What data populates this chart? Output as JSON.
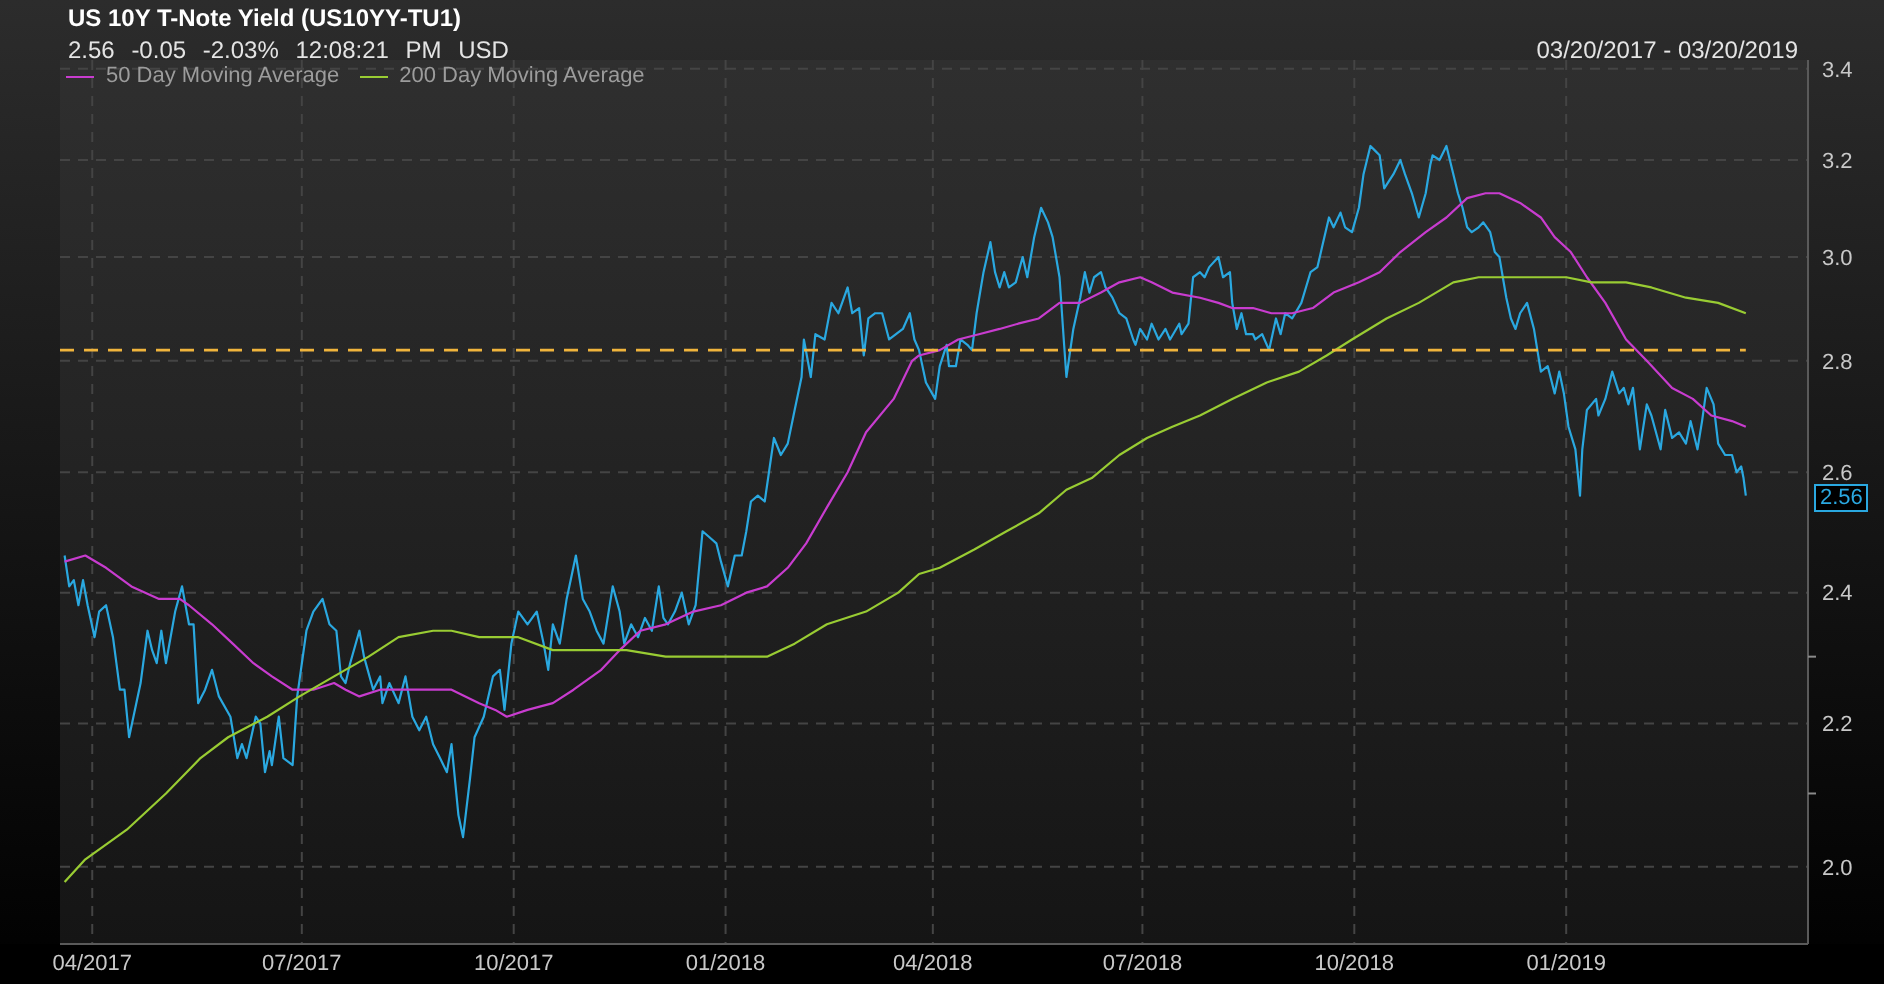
{
  "chart_data": {
    "type": "line",
    "title": "US 10Y T-Note Yield (US10YY-TU1)",
    "subtitle": "2.56 -0.05 -2.03% 12:08:21 PM USD",
    "annotations": [
      "03/20/2017 - 03/20/2019",
      "2.56"
    ],
    "series": [
      {
        "color": "#2aa8e0",
        "x": [
          "2017-03-20",
          "2017-03-22",
          "2017-03-24",
          "2017-03-26",
          "2017-03-28",
          "2017-03-30",
          "2017-04-02",
          "2017-04-04",
          "2017-04-07",
          "2017-04-10",
          "2017-04-13",
          "2017-04-15",
          "2017-04-17",
          "2017-04-22",
          "2017-04-25",
          "2017-04-27",
          "2017-04-29",
          "2017-05-01",
          "2017-05-03",
          "2017-05-07",
          "2017-05-10",
          "2017-05-13",
          "2017-05-15",
          "2017-05-17",
          "2017-05-20",
          "2017-05-23",
          "2017-05-26",
          "2017-05-31",
          "2017-06-03",
          "2017-06-05",
          "2017-06-07",
          "2017-06-11",
          "2017-06-13",
          "2017-06-15",
          "2017-06-17",
          "2017-06-18",
          "2017-06-21",
          "2017-06-23",
          "2017-06-27",
          "2017-06-29",
          "2017-07-03",
          "2017-07-06",
          "2017-07-10",
          "2017-07-13",
          "2017-07-16",
          "2017-07-18",
          "2017-07-20",
          "2017-07-22",
          "2017-07-26",
          "2017-07-28",
          "2017-08-01",
          "2017-08-04",
          "2017-08-05",
          "2017-08-08",
          "2017-08-12",
          "2017-08-15",
          "2017-08-18",
          "2017-08-21",
          "2017-08-24",
          "2017-08-27",
          "2017-08-30",
          "2017-09-02",
          "2017-09-04",
          "2017-09-07",
          "2017-09-09",
          "2017-09-12",
          "2017-09-14",
          "2017-09-18",
          "2017-09-22",
          "2017-09-25",
          "2017-09-27",
          "2017-09-30",
          "2017-10-03",
          "2017-10-07",
          "2017-10-11",
          "2017-10-14",
          "2017-10-16",
          "2017-10-18",
          "2017-10-21",
          "2017-10-24",
          "2017-10-28",
          "2017-10-31",
          "2017-11-03",
          "2017-11-06",
          "2017-11-09",
          "2017-11-13",
          "2017-11-16",
          "2017-11-18",
          "2017-11-21",
          "2017-11-24",
          "2017-11-27",
          "2017-11-30",
          "2017-12-03",
          "2017-12-05",
          "2017-12-07",
          "2017-12-10",
          "2017-12-13",
          "2017-12-16",
          "2017-12-19",
          "2017-12-22",
          "2017-12-25",
          "2017-12-28",
          "2017-12-30",
          "2018-01-02",
          "2018-01-05",
          "2018-01-08",
          "2018-01-10",
          "2018-01-12",
          "2018-01-15",
          "2018-01-18",
          "2018-01-22",
          "2018-01-25",
          "2018-01-28",
          "2018-01-31",
          "2018-02-03",
          "2018-02-04",
          "2018-02-07",
          "2018-02-09",
          "2018-02-13",
          "2018-02-16",
          "2018-02-19",
          "2018-02-23",
          "2018-02-25",
          "2018-02-28",
          "2018-03-02",
          "2018-03-04",
          "2018-03-07",
          "2018-03-10",
          "2018-03-13",
          "2018-03-16",
          "2018-03-19",
          "2018-03-22",
          "2018-03-24",
          "2018-03-26",
          "2018-03-29",
          "2018-04-02",
          "2018-04-04",
          "2018-04-07",
          "2018-04-08",
          "2018-04-11",
          "2018-04-13",
          "2018-04-16",
          "2018-04-18",
          "2018-04-20",
          "2018-04-23",
          "2018-04-26",
          "2018-04-28",
          "2018-04-30",
          "2018-05-02",
          "2018-05-04",
          "2018-05-07",
          "2018-05-10",
          "2018-05-12",
          "2018-05-15",
          "2018-05-18",
          "2018-05-21",
          "2018-05-23",
          "2018-05-26",
          "2018-05-28",
          "2018-05-29",
          "2018-06-01",
          "2018-06-04",
          "2018-06-06",
          "2018-06-08",
          "2018-06-10",
          "2018-06-13",
          "2018-06-15",
          "2018-06-18",
          "2018-06-21",
          "2018-06-24",
          "2018-06-27",
          "2018-06-28",
          "2018-06-30",
          "2018-07-03",
          "2018-07-05",
          "2018-07-08",
          "2018-07-11",
          "2018-07-13",
          "2018-07-17",
          "2018-07-18",
          "2018-07-21",
          "2018-07-23",
          "2018-07-26",
          "2018-07-28",
          "2018-07-30",
          "2018-08-03",
          "2018-08-05",
          "2018-08-08",
          "2018-08-09",
          "2018-08-11",
          "2018-08-13",
          "2018-08-15",
          "2018-08-18",
          "2018-08-19",
          "2018-08-22",
          "2018-08-25",
          "2018-08-28",
          "2018-08-30",
          "2018-09-01",
          "2018-09-04",
          "2018-09-08",
          "2018-09-10",
          "2018-09-12",
          "2018-09-15",
          "2018-09-17",
          "2018-09-20",
          "2018-09-22",
          "2018-09-25",
          "2018-09-27",
          "2018-09-30",
          "2018-10-03",
          "2018-10-05",
          "2018-10-08",
          "2018-10-10",
          "2018-10-12",
          "2018-10-14",
          "2018-10-18",
          "2018-10-21",
          "2018-10-23",
          "2018-10-26",
          "2018-10-29",
          "2018-11-01",
          "2018-11-03",
          "2018-11-04",
          "2018-11-07",
          "2018-11-10",
          "2018-11-13",
          "2018-11-15",
          "2018-11-17",
          "2018-11-19",
          "2018-11-21",
          "2018-11-24",
          "2018-11-26",
          "2018-11-29",
          "2018-12-01",
          "2018-12-03",
          "2018-12-06",
          "2018-12-08",
          "2018-12-10",
          "2018-12-12",
          "2018-12-15",
          "2018-12-18",
          "2018-12-21",
          "2018-12-24",
          "2018-12-27",
          "2018-12-29",
          "2018-12-31",
          "2019-01-02",
          "2019-01-05",
          "2019-01-07",
          "2019-01-08",
          "2019-01-10",
          "2019-01-14",
          "2019-01-15",
          "2019-01-18",
          "2019-01-21",
          "2019-01-24",
          "2019-01-26",
          "2019-01-28",
          "2019-01-30",
          "2019-02-02",
          "2019-02-05",
          "2019-02-07",
          "2019-02-11",
          "2019-02-13",
          "2019-02-16",
          "2019-02-19",
          "2019-02-22",
          "2019-02-24",
          "2019-02-27",
          "2019-03-01",
          "2019-03-03",
          "2019-03-06",
          "2019-03-08",
          "2019-03-11",
          "2019-03-14",
          "2019-03-16",
          "2019-03-18",
          "2019-03-19",
          "2019-03-20"
        ],
        "values": [
          2.46,
          2.41,
          2.42,
          2.38,
          2.42,
          2.38,
          2.33,
          2.37,
          2.38,
          2.33,
          2.25,
          2.25,
          2.18,
          2.26,
          2.34,
          2.31,
          2.29,
          2.34,
          2.29,
          2.37,
          2.41,
          2.35,
          2.35,
          2.23,
          2.25,
          2.28,
          2.24,
          2.21,
          2.15,
          2.17,
          2.15,
          2.21,
          2.2,
          2.13,
          2.16,
          2.14,
          2.21,
          2.15,
          2.14,
          2.24,
          2.34,
          2.37,
          2.39,
          2.35,
          2.34,
          2.27,
          2.26,
          2.29,
          2.34,
          2.3,
          2.25,
          2.27,
          2.23,
          2.26,
          2.23,
          2.27,
          2.21,
          2.19,
          2.21,
          2.17,
          2.15,
          2.13,
          2.17,
          2.07,
          2.04,
          2.12,
          2.18,
          2.21,
          2.27,
          2.28,
          2.22,
          2.32,
          2.37,
          2.35,
          2.37,
          2.32,
          2.28,
          2.35,
          2.32,
          2.39,
          2.46,
          2.39,
          2.37,
          2.34,
          2.32,
          2.41,
          2.37,
          2.32,
          2.35,
          2.33,
          2.36,
          2.34,
          2.41,
          2.36,
          2.35,
          2.37,
          2.4,
          2.35,
          2.38,
          2.5,
          2.49,
          2.48,
          2.45,
          2.41,
          2.46,
          2.46,
          2.5,
          2.55,
          2.56,
          2.55,
          2.66,
          2.63,
          2.65,
          2.71,
          2.77,
          2.84,
          2.77,
          2.85,
          2.84,
          2.91,
          2.89,
          2.94,
          2.89,
          2.9,
          2.81,
          2.88,
          2.89,
          2.89,
          2.84,
          2.85,
          2.86,
          2.89,
          2.84,
          2.82,
          2.76,
          2.73,
          2.79,
          2.83,
          2.79,
          2.79,
          2.84,
          2.83,
          2.82,
          2.89,
          2.97,
          3.03,
          2.97,
          2.94,
          2.97,
          2.94,
          2.95,
          3.0,
          2.96,
          3.04,
          3.1,
          3.07,
          3.04,
          2.96,
          2.83,
          2.77,
          2.86,
          2.92,
          2.97,
          2.93,
          2.96,
          2.97,
          2.94,
          2.92,
          2.89,
          2.88,
          2.84,
          2.83,
          2.86,
          2.84,
          2.87,
          2.84,
          2.86,
          2.84,
          2.87,
          2.85,
          2.87,
          2.96,
          2.97,
          2.96,
          2.98,
          3.0,
          2.96,
          2.97,
          2.91,
          2.86,
          2.89,
          2.85,
          2.85,
          2.84,
          2.85,
          2.82,
          2.88,
          2.85,
          2.89,
          2.88,
          2.91,
          2.94,
          2.97,
          2.98,
          3.02,
          3.08,
          3.06,
          3.09,
          3.06,
          3.05,
          3.1,
          3.17,
          3.23,
          3.22,
          3.21,
          3.14,
          3.17,
          3.2,
          3.17,
          3.13,
          3.08,
          3.13,
          3.19,
          3.21,
          3.2,
          3.23,
          3.17,
          3.13,
          3.1,
          3.06,
          3.05,
          3.06,
          3.07,
          3.05,
          3.01,
          3.0,
          2.92,
          2.88,
          2.86,
          2.89,
          2.91,
          2.86,
          2.78,
          2.79,
          2.74,
          2.78,
          2.74,
          2.68,
          2.64,
          2.56,
          2.64,
          2.71,
          2.73,
          2.7,
          2.73,
          2.78,
          2.74,
          2.75,
          2.72,
          2.75,
          2.64,
          2.72,
          2.7,
          2.64,
          2.71,
          2.66,
          2.67,
          2.65,
          2.69,
          2.64,
          2.69,
          2.75,
          2.72,
          2.65,
          2.63,
          2.63,
          2.6,
          2.61,
          2.59,
          2.56
        ]
      },
      {
        "name": "50 Day Moving Average",
        "color": "#c83ccf",
        "x": [
          "2017-03-20",
          "2017-03-29",
          "2017-04-07",
          "2017-04-18",
          "2017-04-30",
          "2017-05-09",
          "2017-05-13",
          "2017-05-23",
          "2017-06-01",
          "2017-06-10",
          "2017-06-18",
          "2017-06-27",
          "2017-07-06",
          "2017-07-15",
          "2017-07-20",
          "2017-07-26",
          "2017-08-04",
          "2017-08-12",
          "2017-08-24",
          "2017-09-04",
          "2017-09-10",
          "2017-09-16",
          "2017-09-23",
          "2017-09-28",
          "2017-10-07",
          "2017-10-18",
          "2017-10-27",
          "2017-11-08",
          "2017-11-16",
          "2017-11-25",
          "2017-12-06",
          "2017-12-18",
          "2017-12-30",
          "2018-01-10",
          "2018-01-19",
          "2018-01-28",
          "2018-02-05",
          "2018-02-14",
          "2018-02-23",
          "2018-03-03",
          "2018-03-15",
          "2018-03-23",
          "2018-03-26",
          "2018-04-04",
          "2018-04-12",
          "2018-04-21",
          "2018-04-30",
          "2018-05-08",
          "2018-05-17",
          "2018-05-26",
          "2018-06-04",
          "2018-06-13",
          "2018-06-21",
          "2018-06-30",
          "2018-07-05",
          "2018-07-14",
          "2018-07-26",
          "2018-08-03",
          "2018-08-09",
          "2018-08-18",
          "2018-08-26",
          "2018-09-04",
          "2018-09-13",
          "2018-09-22",
          "2018-10-03",
          "2018-10-12",
          "2018-10-21",
          "2018-11-01",
          "2018-11-10",
          "2018-11-19",
          "2018-11-27",
          "2018-12-03",
          "2018-12-12",
          "2018-12-21",
          "2018-12-27",
          "2019-01-03",
          "2019-01-10",
          "2019-01-18",
          "2019-01-27",
          "2019-02-05",
          "2019-02-16",
          "2019-02-25",
          "2019-03-05",
          "2019-03-14",
          "2019-03-20"
        ],
        "values": [
          2.45,
          2.46,
          2.44,
          2.41,
          2.39,
          2.39,
          2.38,
          2.35,
          2.32,
          2.29,
          2.27,
          2.25,
          2.25,
          2.26,
          2.25,
          2.24,
          2.25,
          2.25,
          2.25,
          2.25,
          2.24,
          2.23,
          2.22,
          2.21,
          2.22,
          2.23,
          2.25,
          2.28,
          2.31,
          2.34,
          2.35,
          2.37,
          2.38,
          2.4,
          2.41,
          2.44,
          2.48,
          2.54,
          2.6,
          2.67,
          2.73,
          2.8,
          2.81,
          2.82,
          2.84,
          2.85,
          2.86,
          2.87,
          2.88,
          2.91,
          2.91,
          2.93,
          2.95,
          2.96,
          2.95,
          2.93,
          2.92,
          2.91,
          2.9,
          2.9,
          2.89,
          2.89,
          2.9,
          2.93,
          2.95,
          2.97,
          3.01,
          3.05,
          3.08,
          3.12,
          3.13,
          3.13,
          3.11,
          3.08,
          3.04,
          3.01,
          2.96,
          2.91,
          2.84,
          2.8,
          2.75,
          2.73,
          2.7,
          2.69,
          2.68
        ]
      },
      {
        "name": "200 Day Moving Average",
        "color": "#99cc33",
        "x": [
          "2017-03-20",
          "2017-03-29",
          "2017-04-16",
          "2017-05-03",
          "2017-05-18",
          "2017-05-30",
          "2017-06-16",
          "2017-06-30",
          "2017-07-15",
          "2017-07-30",
          "2017-08-12",
          "2017-08-27",
          "2017-09-04",
          "2017-09-16",
          "2017-10-03",
          "2017-10-18",
          "2017-11-02",
          "2017-11-19",
          "2017-12-06",
          "2017-12-23",
          "2018-01-08",
          "2018-01-19",
          "2018-01-31",
          "2018-02-14",
          "2018-03-03",
          "2018-03-17",
          "2018-03-26",
          "2018-04-04",
          "2018-04-19",
          "2018-05-03",
          "2018-05-17",
          "2018-05-29",
          "2018-06-09",
          "2018-06-21",
          "2018-07-03",
          "2018-07-14",
          "2018-07-26",
          "2018-08-09",
          "2018-08-24",
          "2018-09-07",
          "2018-09-19",
          "2018-09-30",
          "2018-10-15",
          "2018-10-29",
          "2018-11-13",
          "2018-11-24",
          "2018-12-03",
          "2018-12-18",
          "2019-01-01",
          "2019-01-12",
          "2019-01-27",
          "2019-02-07",
          "2019-02-22",
          "2019-03-08",
          "2019-03-20"
        ],
        "values": [
          1.98,
          2.01,
          2.05,
          2.1,
          2.15,
          2.18,
          2.21,
          2.24,
          2.27,
          2.3,
          2.33,
          2.34,
          2.34,
          2.33,
          2.33,
          2.31,
          2.31,
          2.31,
          2.3,
          2.3,
          2.3,
          2.3,
          2.32,
          2.35,
          2.37,
          2.4,
          2.43,
          2.44,
          2.47,
          2.5,
          2.53,
          2.57,
          2.59,
          2.63,
          2.66,
          2.68,
          2.7,
          2.73,
          2.76,
          2.78,
          2.81,
          2.84,
          2.88,
          2.91,
          2.95,
          2.96,
          2.96,
          2.96,
          2.96,
          2.95,
          2.95,
          2.94,
          2.92,
          2.91,
          2.89
        ]
      }
    ],
    "xlim": [
      "2017-03-18",
      "2019-04-16"
    ],
    "xticks": [
      {
        "value": "2017-04",
        "label": "04/2017"
      },
      {
        "value": "2017-07",
        "label": "07/2017"
      },
      {
        "value": "2017-10",
        "label": "10/2017"
      },
      {
        "value": "2018-01",
        "label": "01/2018"
      },
      {
        "value": "2018-04",
        "label": "04/2018"
      },
      {
        "value": "2018-07",
        "label": "07/2018"
      },
      {
        "value": "2018-10",
        "label": "10/2018"
      },
      {
        "value": "2019-01",
        "label": "01/2019"
      }
    ],
    "ylim": [
      1.9,
      3.42
    ],
    "yticks": [
      {
        "value": 2,
        "label": "2.0"
      },
      {
        "value": 2.1,
        "label": null
      },
      2.2,
      {
        "value": 2.3,
        "label": null
      },
      2.4,
      2.6,
      2.8,
      {
        "value": 3,
        "label": "3.0"
      },
      3.2,
      3.4
    ],
    "log": "y",
    "grid": true,
    "legend": "top left",
    "marker": "none",
    "line_style": "solid",
    "ref_lines": [
      {
        "axis": "y",
        "value": 2.82,
        "color": "#f0b43c",
        "line_style": "dashed"
      }
    ]
  }
}
